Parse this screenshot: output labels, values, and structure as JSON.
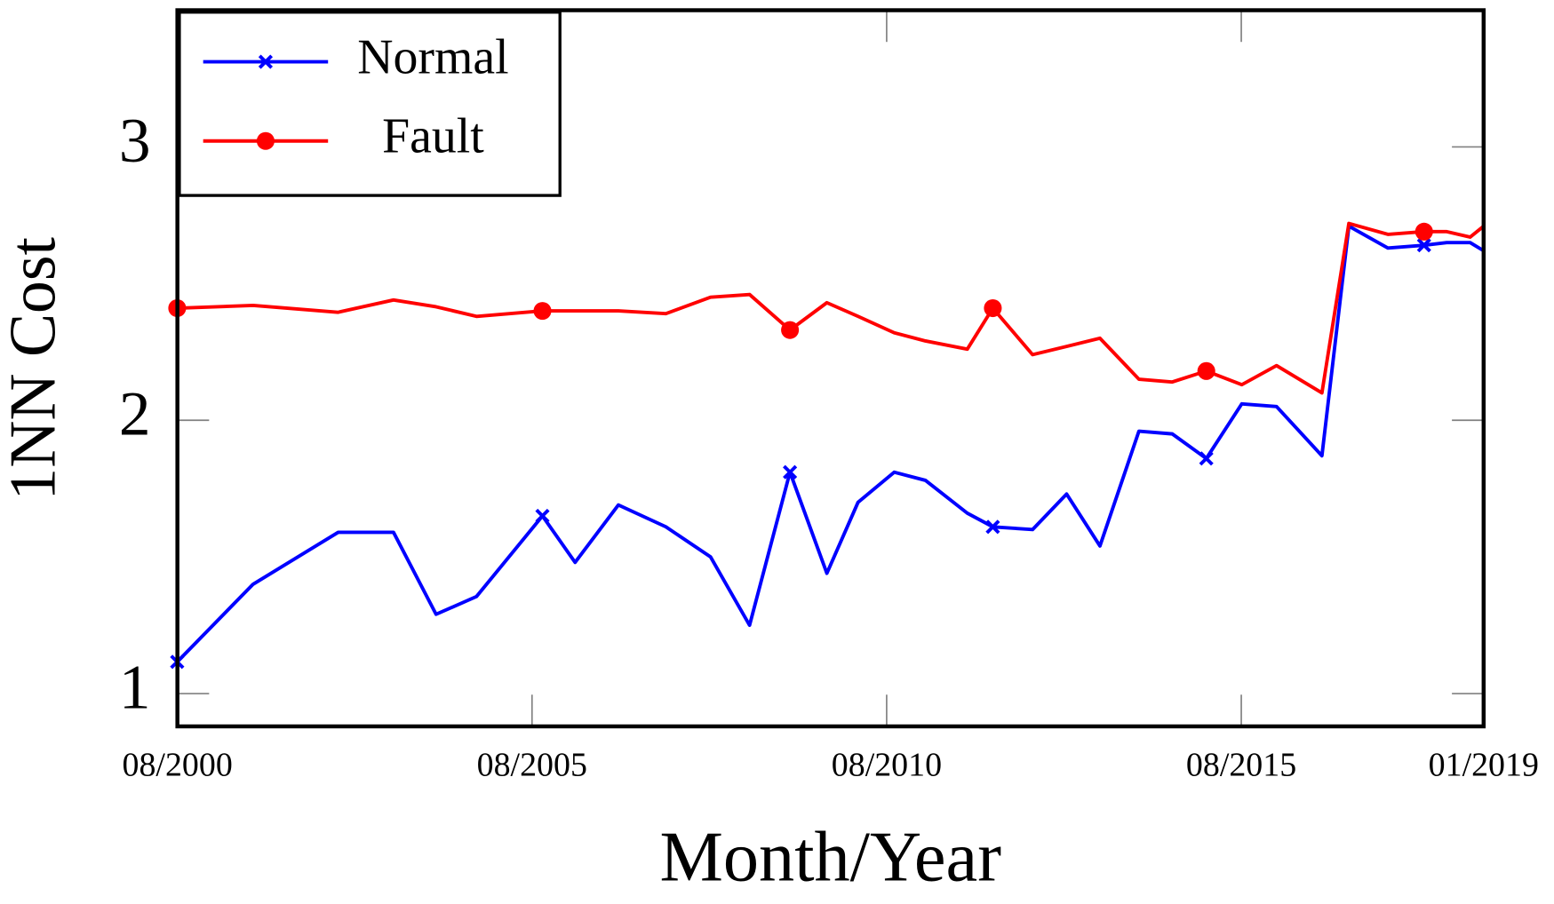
{
  "chart_data": {
    "type": "line",
    "xlabel": "Month/Year",
    "ylabel": "1NN Cost",
    "x": [
      2000.58,
      2001.65,
      2002.85,
      2003.63,
      2004.23,
      2004.8,
      2005.73,
      2006.19,
      2006.8,
      2007.47,
      2008.1,
      2008.65,
      2009.22,
      2009.74,
      2010.18,
      2010.69,
      2011.13,
      2011.72,
      2012.08,
      2012.64,
      2013.12,
      2013.59,
      2014.14,
      2014.61,
      2015.09,
      2015.59,
      2016.08,
      2016.72,
      2017.1,
      2017.65,
      2018.16,
      2018.48,
      2018.81,
      2019.0
    ],
    "xlim": [
      2000.583,
      2019.0
    ],
    "xticks": [
      {
        "value": 2000.583,
        "label": "08/2000"
      },
      {
        "value": 2005.583,
        "label": "08/2005"
      },
      {
        "value": 2010.583,
        "label": "08/2010"
      },
      {
        "value": 2015.583,
        "label": "08/2015"
      },
      {
        "value": 2019.0,
        "label": "01/2019"
      }
    ],
    "ylim": [
      0.88,
      3.5
    ],
    "yticks": [
      1,
      2,
      3
    ],
    "mark_every": 6,
    "legend_position": "upper left",
    "series": [
      {
        "name": "Normal",
        "color": "#0000ff",
        "marker": "x",
        "values": [
          1.116,
          1.4,
          1.59,
          1.59,
          1.29,
          1.355,
          1.65,
          1.48,
          1.69,
          1.61,
          1.5,
          1.25,
          1.81,
          1.44,
          1.7,
          1.81,
          1.78,
          1.66,
          1.61,
          1.6,
          1.73,
          1.54,
          1.96,
          1.95,
          1.86,
          2.06,
          2.05,
          1.87,
          2.71,
          2.63,
          2.64,
          2.65,
          2.65,
          2.62
        ]
      },
      {
        "name": "Fault",
        "color": "#ff0000",
        "marker": "circle",
        "values": [
          2.41,
          2.42,
          2.395,
          2.44,
          2.415,
          2.38,
          2.4,
          2.4,
          2.4,
          2.39,
          2.45,
          2.46,
          2.33,
          2.43,
          2.38,
          2.32,
          2.29,
          2.26,
          2.41,
          2.24,
          2.27,
          2.3,
          2.15,
          2.14,
          2.18,
          2.13,
          2.2,
          2.1,
          2.72,
          2.68,
          2.69,
          2.69,
          2.67,
          2.71
        ]
      }
    ]
  }
}
